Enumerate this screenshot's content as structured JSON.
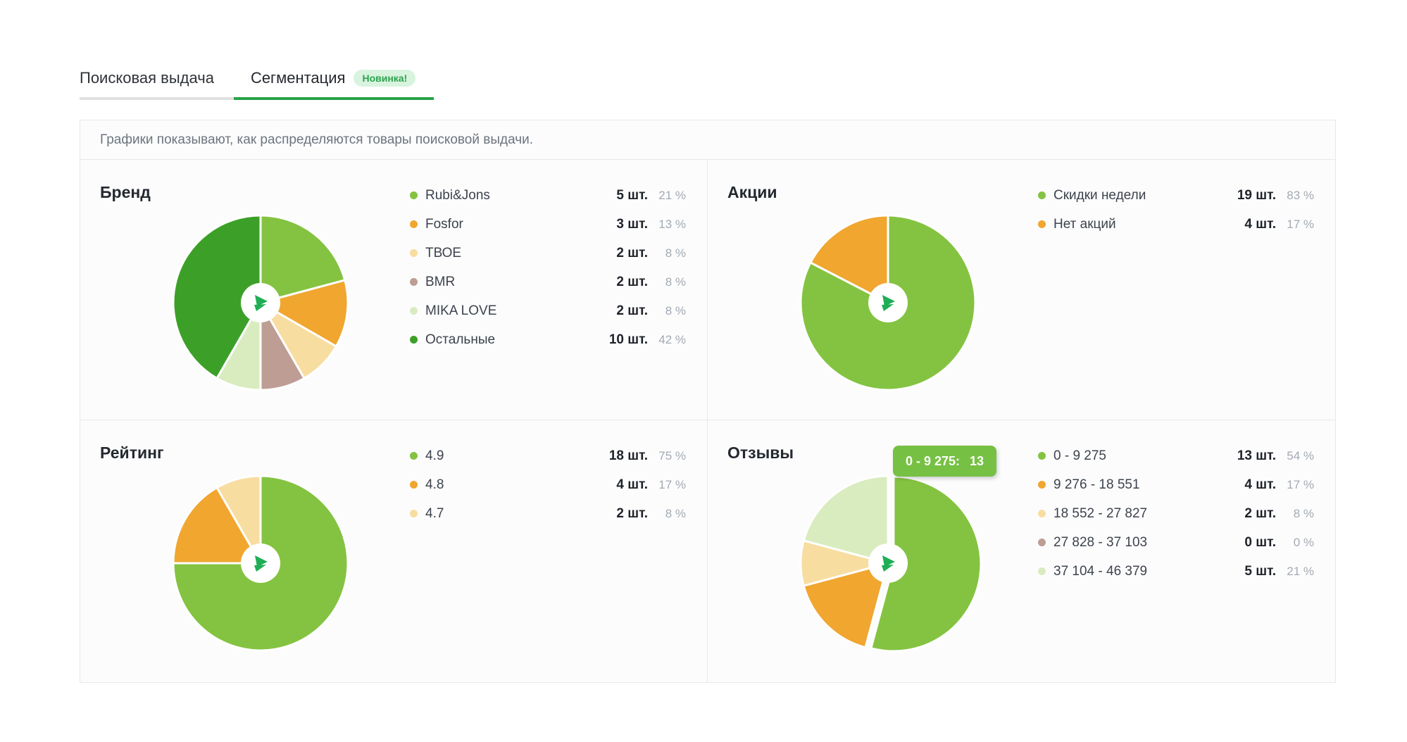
{
  "tabs": [
    {
      "label": "Поисковая выдача",
      "active": false
    },
    {
      "label": "Сегментация",
      "active": true,
      "badge": "Новинка!"
    }
  ],
  "info_banner": {
    "text": "Графики показывают, как распределяются товары поисковой выдачи."
  },
  "colors": {
    "accent_green": "#27a346",
    "badge_bg": "#d8f3de",
    "badge_text": "#2ea34f",
    "tooltip_bg": "#76c043",
    "border": "#e8e8e8",
    "logo_green": "#1fae55",
    "palette": [
      "#84c341",
      "#f0a62f",
      "#f8dda1",
      "#bd9d94",
      "#d9ecbf",
      "#3ca028"
    ]
  },
  "chart_data": [
    {
      "type": "pie",
      "title": "Бренд",
      "legend_position": "right",
      "items": [
        {
          "label": "Rubi&Jons",
          "count": 5,
          "count_text": "5 шт.",
          "percent_text": "21 %",
          "color": "#84c341"
        },
        {
          "label": "Fosfor",
          "count": 3,
          "count_text": "3 шт.",
          "percent_text": "13 %",
          "color": "#f0a62f"
        },
        {
          "label": "ТВОЕ",
          "count": 2,
          "count_text": "2 шт.",
          "percent_text": "8 %",
          "color": "#f8dda1"
        },
        {
          "label": "BMR",
          "count": 2,
          "count_text": "2 шт.",
          "percent_text": "8 %",
          "color": "#bd9d94"
        },
        {
          "label": "MIKA LOVE",
          "count": 2,
          "count_text": "2 шт.",
          "percent_text": "8 %",
          "color": "#d9ecbf"
        },
        {
          "label": "Остальные",
          "count": 10,
          "count_text": "10 шт.",
          "percent_text": "42 %",
          "color": "#3ca028"
        }
      ]
    },
    {
      "type": "pie",
      "title": "Акции",
      "legend_position": "right",
      "items": [
        {
          "label": "Скидки недели",
          "count": 19,
          "count_text": "19 шт.",
          "percent_text": "83 %",
          "color": "#84c341"
        },
        {
          "label": "Нет акций",
          "count": 4,
          "count_text": "4 шт.",
          "percent_text": "17 %",
          "color": "#f0a62f"
        }
      ]
    },
    {
      "type": "pie",
      "title": "Рейтинг",
      "legend_position": "right",
      "items": [
        {
          "label": "4.9",
          "count": 18,
          "count_text": "18 шт.",
          "percent_text": "75 %",
          "color": "#84c341"
        },
        {
          "label": "4.8",
          "count": 4,
          "count_text": "4 шт.",
          "percent_text": "17 %",
          "color": "#f0a62f"
        },
        {
          "label": "4.7",
          "count": 2,
          "count_text": "2 шт.",
          "percent_text": "8 %",
          "color": "#f8dda1"
        }
      ]
    },
    {
      "type": "pie",
      "title": "Отзывы",
      "legend_position": "right",
      "tooltip": {
        "label": "0 - 9 275:",
        "value": "13"
      },
      "items": [
        {
          "label": "0 - 9 275",
          "count": 13,
          "count_text": "13 шт.",
          "percent_text": "54 %",
          "color": "#84c341",
          "exploded": true
        },
        {
          "label": "9 276 - 18 551",
          "count": 4,
          "count_text": "4 шт.",
          "percent_text": "17 %",
          "color": "#f0a62f"
        },
        {
          "label": "18 552 - 27 827",
          "count": 2,
          "count_text": "2 шт.",
          "percent_text": "8 %",
          "color": "#f8dda1"
        },
        {
          "label": "27 828 - 37 103",
          "count": 0,
          "count_text": "0 шт.",
          "percent_text": "0 %",
          "color": "#bd9d94"
        },
        {
          "label": "37 104 - 46 379",
          "count": 5,
          "count_text": "5 шт.",
          "percent_text": "21 %",
          "color": "#d9ecbf"
        }
      ]
    }
  ]
}
